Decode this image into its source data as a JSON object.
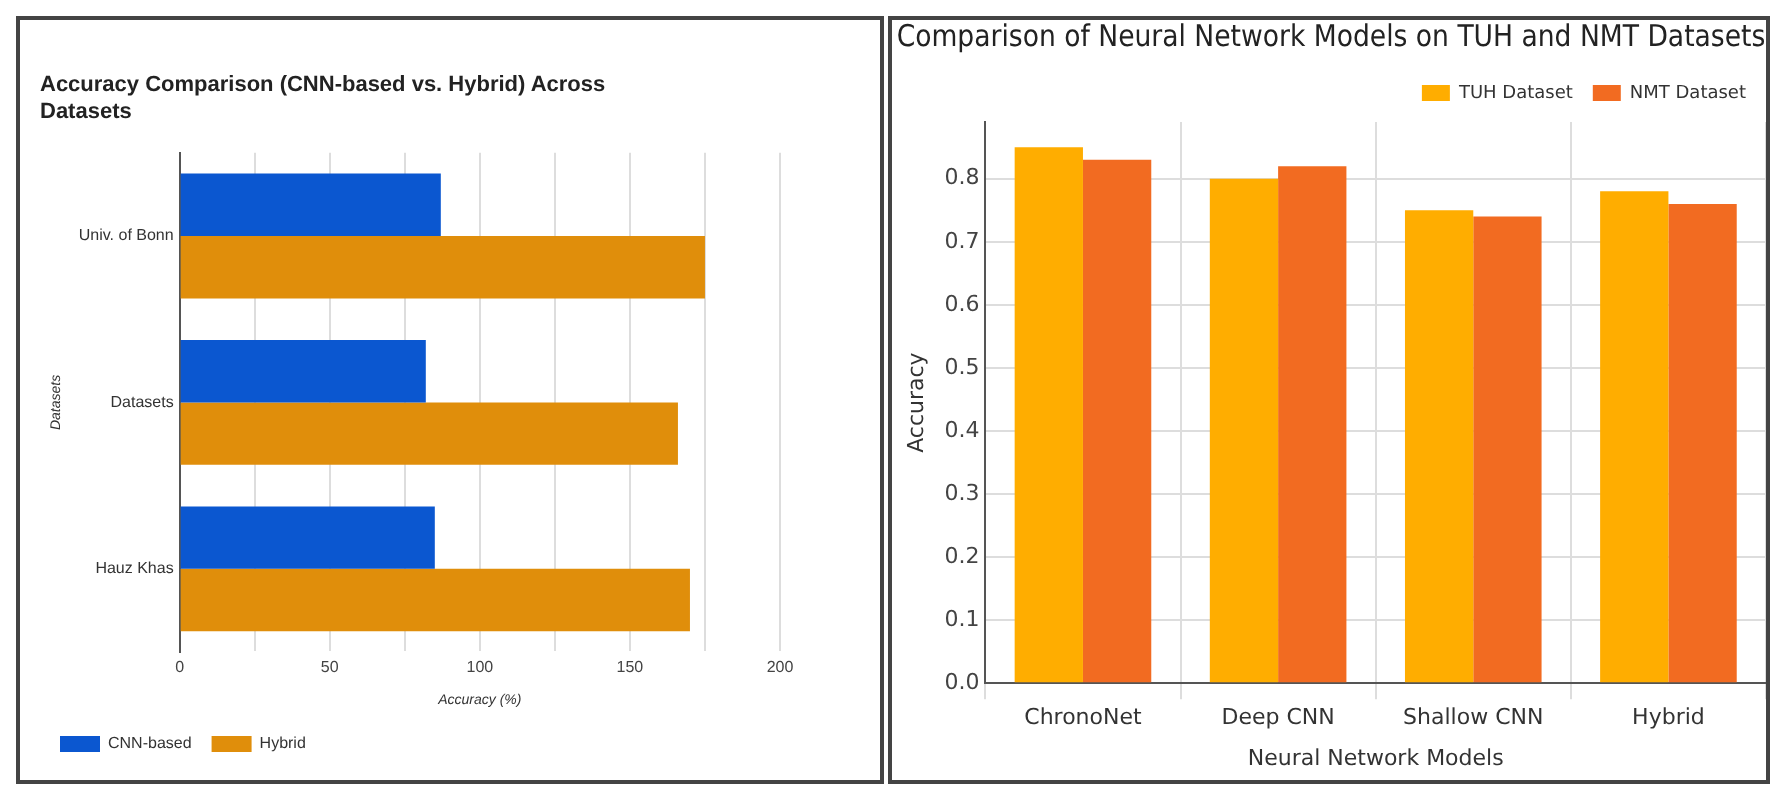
{
  "chart_data": [
    {
      "type": "bar",
      "orientation": "horizontal",
      "title": "Accuracy Comparison (CNN-based vs. Hybrid) Across Datasets",
      "xlabel": "Accuracy (%)",
      "ylabel": "Datasets",
      "categories": [
        "Univ. of Bonn",
        "Datasets",
        "Hauz Khas"
      ],
      "series": [
        {
          "name": "CNN-based",
          "color": "#0b57d0",
          "values": [
            87,
            82,
            85
          ]
        },
        {
          "name": "Hybrid",
          "color": "#e08e0b",
          "values": [
            175,
            166,
            170
          ]
        }
      ],
      "xlim": [
        0,
        200
      ],
      "xticks": [
        0,
        {
          "value": 25,
          "label": null
        },
        50,
        {
          "value": 75,
          "label": null
        },
        100,
        {
          "value": 125,
          "label": null
        },
        150,
        {
          "value": 175,
          "label": null
        },
        200
      ],
      "grid": "x",
      "legend": "bottom"
    },
    {
      "type": "bar",
      "title": "Comparison of Neural Network Models on TUH and NMT Datasets",
      "xlabel": "Neural Network Models",
      "ylabel": "Accuracy",
      "categories": [
        "ChronoNet",
        "Deep CNN",
        "Shallow CNN",
        "Hybrid"
      ],
      "series": [
        {
          "name": "TUH Dataset",
          "color": "#ffad00",
          "values": [
            0.85,
            0.8,
            0.75,
            0.78
          ]
        },
        {
          "name": "NMT Dataset",
          "color": "#f26b21",
          "values": [
            0.83,
            0.82,
            0.74,
            0.76
          ]
        }
      ],
      "ylim": [
        0,
        0.89
      ],
      "yticks": [
        "0.0",
        0.1,
        0.2,
        0.3,
        0.4,
        0.5,
        0.6,
        0.7,
        0.8
      ],
      "grid": true,
      "legend": "top right"
    }
  ]
}
